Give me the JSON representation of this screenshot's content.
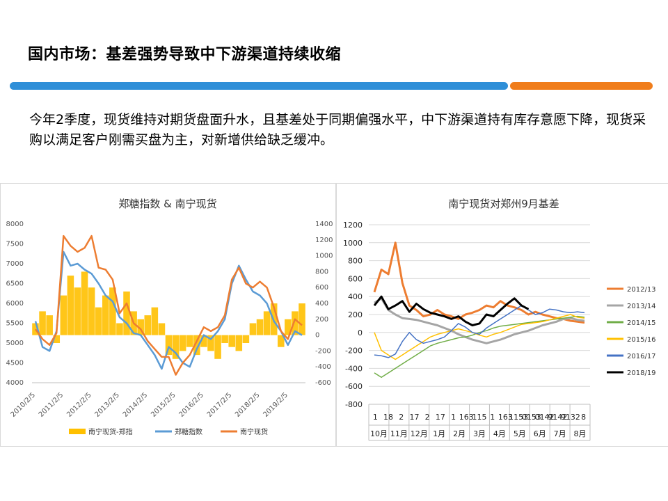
{
  "slide": {
    "title": "国内市场：基差强势导致中下游渠道持续收缩",
    "body": "今年2季度，现货维持对期货盘面升水，且基差处于同期偏强水平，中下游渠道持有库存意愿下降，现货采购以满足客户刚需买盘为主，对新增供给缺乏缓冲。",
    "colors": {
      "blue_bar": "#2f8fd8",
      "orange_bar": "#f07d1b"
    }
  },
  "chart_data": [
    {
      "type": "line",
      "title": "郑糖指数 & 南宁现货",
      "x_tick_labels": [
        "2010/2/5",
        "2011/2/5",
        "2012/2/5",
        "2013/2/5",
        "2014/2/5",
        "2015/2/5",
        "2016/2/5",
        "2017/2/5",
        "2018/2/5",
        "2019/2/5"
      ],
      "y_left_ticks": [
        "8000",
        "7500",
        "7000",
        "6500",
        "6000",
        "5500",
        "5000",
        "4500",
        "4000"
      ],
      "y_right_ticks": [
        "1400",
        "1200",
        "1000",
        "800",
        "600",
        "400",
        "200",
        "0",
        "-200",
        "-400",
        "-600"
      ],
      "ylim_left": [
        4000,
        8000
      ],
      "ylim_right": [
        -600,
        1400
      ],
      "grid": false,
      "legend_position": "bottom",
      "x_dates": [
        "2010-02",
        "2010-05",
        "2010-08",
        "2010-11",
        "2011-02",
        "2011-05",
        "2011-08",
        "2011-11",
        "2012-02",
        "2012-05",
        "2012-08",
        "2012-11",
        "2013-02",
        "2013-05",
        "2013-08",
        "2013-11",
        "2014-02",
        "2014-05",
        "2014-08",
        "2014-11",
        "2015-02",
        "2015-05",
        "2015-08",
        "2015-11",
        "2016-02",
        "2016-05",
        "2016-08",
        "2016-11",
        "2017-02",
        "2017-05",
        "2017-08",
        "2017-11",
        "2018-02",
        "2018-05",
        "2018-08",
        "2018-11",
        "2019-02",
        "2019-05",
        "2019-08"
      ],
      "series": [
        {
          "name": "南宁现货-郑指",
          "kind": "bar",
          "axis": "right",
          "color": "#ffc000",
          "values": [
            150,
            300,
            250,
            -100,
            500,
            750,
            600,
            800,
            600,
            350,
            500,
            600,
            150,
            550,
            300,
            200,
            250,
            350,
            150,
            -250,
            -300,
            -200,
            -150,
            -250,
            -150,
            -200,
            -300,
            -100,
            -150,
            -200,
            -100,
            150,
            200,
            300,
            400,
            -150,
            200,
            300,
            400
          ]
        },
        {
          "name": "郑糖指数",
          "kind": "line",
          "axis": "left",
          "color": "#5b9bd5",
          "values": [
            5550,
            4900,
            4800,
            5300,
            7300,
            6950,
            7000,
            6850,
            6750,
            6500,
            6200,
            6050,
            5650,
            5500,
            5250,
            5200,
            4950,
            4700,
            4350,
            4900,
            4750,
            4500,
            4400,
            4850,
            5200,
            5100,
            5300,
            5600,
            6500,
            6950,
            6600,
            6300,
            6200,
            6000,
            5550,
            5300,
            4950,
            5300,
            5200
          ]
        },
        {
          "name": "南宁现货",
          "kind": "line",
          "axis": "left",
          "color": "#ed7d31",
          "values": [
            5350,
            5100,
            4950,
            5250,
            7700,
            7450,
            7300,
            7400,
            7700,
            6900,
            6850,
            6600,
            5750,
            6000,
            5500,
            5350,
            5050,
            4850,
            4650,
            4650,
            4200,
            4500,
            4700,
            5050,
            5400,
            5300,
            5400,
            5700,
            6600,
            6900,
            6500,
            6400,
            6550,
            6400,
            5900,
            5300,
            5100,
            5600,
            5450
          ]
        }
      ]
    },
    {
      "type": "line",
      "title": "南宁现货对郑州9月基差",
      "x_day_labels": [
        "1",
        "18",
        "2",
        "17",
        "2",
        "17",
        "1",
        "163",
        "115",
        "1",
        "163",
        "1153",
        "0153",
        "0142",
        "9142",
        "9132",
        "8"
      ],
      "x_month_labels": [
        "10月",
        "11月",
        "12月",
        "1月",
        "2月",
        "3月",
        "4月",
        "5月",
        "6月",
        "7月",
        "8月"
      ],
      "y_ticks": [
        "1200",
        "1000",
        "800",
        "600",
        "400",
        "200",
        "0",
        "-200",
        "-400",
        "-600",
        "-800"
      ],
      "ylim": [
        -800,
        1200
      ],
      "grid": true,
      "legend_position": "right",
      "series": [
        {
          "name": "2012/13",
          "color": "#ed7d31",
          "width": 3,
          "values": [
            450,
            700,
            650,
            1000,
            550,
            300,
            250,
            180,
            200,
            250,
            200,
            180,
            150,
            200,
            220,
            250,
            300,
            280,
            350,
            300,
            280,
            250,
            200,
            230,
            200,
            180,
            160,
            150,
            130,
            120,
            110
          ]
        },
        {
          "name": "2013/14",
          "color": "#a5a5a5",
          "width": 3,
          "values": [
            330,
            380,
            250,
            200,
            160,
            150,
            140,
            120,
            100,
            80,
            50,
            20,
            -20,
            -50,
            -80,
            -100,
            -120,
            -100,
            -80,
            -50,
            -20,
            0,
            20,
            50,
            80,
            100,
            120,
            150,
            160,
            140,
            130
          ]
        },
        {
          "name": "2014/15",
          "color": "#70ad47",
          "width": 1.5,
          "values": [
            -450,
            -500,
            -450,
            -400,
            -350,
            -300,
            -250,
            -200,
            -150,
            -120,
            -100,
            -80,
            -60,
            -50,
            -30,
            0,
            20,
            50,
            70,
            80,
            90,
            100,
            110,
            120,
            130,
            140,
            150,
            160,
            170,
            180,
            170
          ]
        },
        {
          "name": "2015/16",
          "color": "#ffc000",
          "width": 1.5,
          "values": [
            0,
            -200,
            -250,
            -300,
            -250,
            -200,
            -150,
            -100,
            -50,
            -20,
            0,
            20,
            40,
            20,
            0,
            -30,
            -50,
            -20,
            0,
            30,
            60,
            90,
            100,
            110,
            120,
            140,
            160,
            180,
            200,
            170,
            160
          ]
        },
        {
          "name": "2016/17",
          "color": "#4472c4",
          "width": 1.5,
          "values": [
            -250,
            -260,
            -280,
            -240,
            -100,
            0,
            -80,
            -120,
            -100,
            -80,
            -50,
            20,
            100,
            60,
            0,
            -20,
            50,
            100,
            150,
            200,
            250,
            300,
            250,
            200,
            220,
            260,
            250,
            230,
            220,
            230,
            220
          ]
        },
        {
          "name": "2018/19",
          "color": "#000000",
          "width": 3,
          "values": [
            300,
            400,
            260,
            300,
            350,
            230,
            320,
            260,
            220,
            200,
            180,
            150,
            180,
            120,
            80,
            100,
            200,
            180,
            250,
            320,
            380,
            300,
            260,
            null,
            null,
            null,
            null,
            null,
            null,
            null,
            null
          ]
        }
      ]
    }
  ]
}
